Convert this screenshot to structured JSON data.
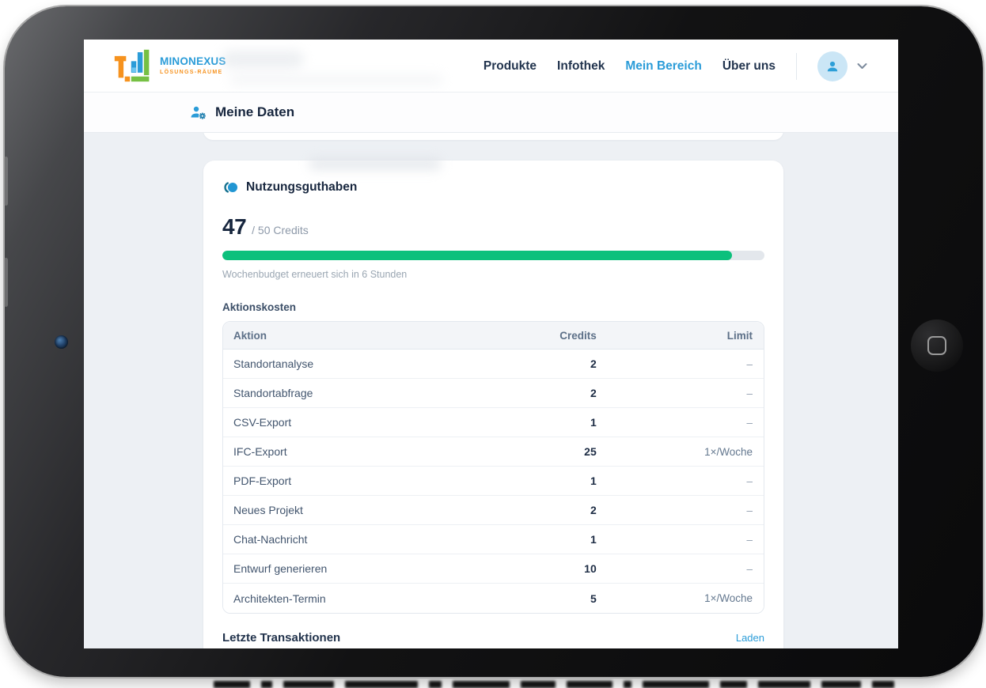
{
  "brand": {
    "name": "MINONEXUS",
    "tagline": "LÖSUNGS-RÄUME"
  },
  "nav": {
    "items": [
      "Produkte",
      "Infothek",
      "Mein Bereich",
      "Über uns"
    ],
    "active": "Mein Bereich"
  },
  "subheader": {
    "title": "Meine Daten"
  },
  "credits_card": {
    "title": "Nutzungsguthaben",
    "current": "47",
    "total_label": "/ 50 Credits",
    "progress": {
      "percent": 94,
      "fill_color": "#0cc07c"
    },
    "renewal_note": "Wochenbudget erneuert sich in 6 Stunden",
    "costs_label": "Aktionskosten",
    "table": {
      "columns": [
        "Aktion",
        "Credits",
        "Limit"
      ],
      "rows": [
        {
          "action": "Standortanalyse",
          "credits": "2",
          "limit": "–"
        },
        {
          "action": "Standortabfrage",
          "credits": "2",
          "limit": "–"
        },
        {
          "action": "CSV-Export",
          "credits": "1",
          "limit": "–"
        },
        {
          "action": "IFC-Export",
          "credits": "25",
          "limit": "1×/Woche"
        },
        {
          "action": "PDF-Export",
          "credits": "1",
          "limit": "–"
        },
        {
          "action": "Neues Projekt",
          "credits": "2",
          "limit": "–"
        },
        {
          "action": "Chat-Nachricht",
          "credits": "1",
          "limit": "–"
        },
        {
          "action": "Entwurf generieren",
          "credits": "10",
          "limit": "–"
        },
        {
          "action": "Architekten-Termin",
          "credits": "5",
          "limit": "1×/Woche"
        }
      ]
    },
    "transactions_label": "Letzte Transaktionen",
    "load_link": "Laden"
  },
  "icons": {
    "subheader": "manage-accounts-icon",
    "card": "coins-icon",
    "avatar": "user-avatar-icon",
    "chevron": "chevron-down-icon"
  },
  "colors": {
    "accent_blue": "#2B9CD8",
    "success_green": "#0CC07C",
    "brand_orange": "#F6921E"
  }
}
